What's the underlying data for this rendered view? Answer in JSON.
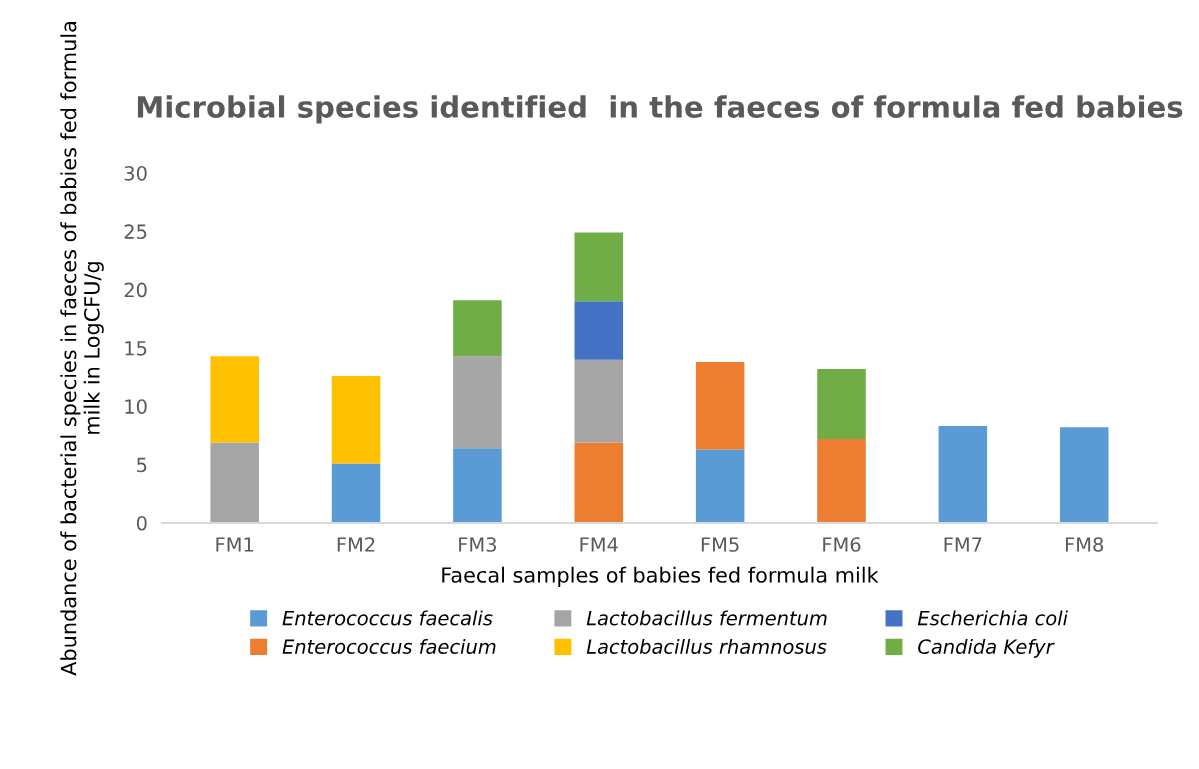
{
  "chart_data": {
    "type": "bar",
    "stacked": true,
    "title": "Microbial species identified  in the faeces of formula fed babies",
    "xlabel": "Faecal samples of babies fed formula milk",
    "ylabel": "Abundance of bacterial species in faeces of babies fed formula milk in LogCFU/g",
    "categories": [
      "FM1",
      "FM2",
      "FM3",
      "FM4",
      "FM5",
      "FM6",
      "FM7",
      "FM8"
    ],
    "series": [
      {
        "name": "Enterococcus faecalis",
        "color": "#5b9bd5",
        "values": [
          null,
          5.1,
          6.4,
          null,
          6.3,
          null,
          8.3,
          8.2
        ]
      },
      {
        "name": "Enterococcus faecium",
        "color": "#ed7d31",
        "values": [
          null,
          null,
          null,
          6.9,
          7.5,
          7.2,
          null,
          null
        ]
      },
      {
        "name": "Lactobacillus fermentum",
        "color": "#a5a5a5",
        "values": [
          6.9,
          null,
          7.9,
          7.1,
          null,
          null,
          null,
          null
        ]
      },
      {
        "name": "Lactobacillus rhamnosus",
        "color": "#ffc000",
        "values": [
          7.4,
          7.5,
          null,
          null,
          null,
          null,
          null,
          null
        ]
      },
      {
        "name": "Escherichia coli",
        "color": "#4472c4",
        "values": [
          null,
          null,
          null,
          5.0,
          null,
          null,
          null,
          null
        ]
      },
      {
        "name": "Candida Kefyr",
        "color": "#70ad47",
        "values": [
          null,
          null,
          4.8,
          5.9,
          null,
          6.0,
          null,
          null
        ]
      }
    ],
    "ylim": [
      0,
      30
    ],
    "yticks": [
      0,
      5,
      10,
      15,
      20,
      25,
      30
    ],
    "grid": false,
    "legend": "bottom"
  }
}
